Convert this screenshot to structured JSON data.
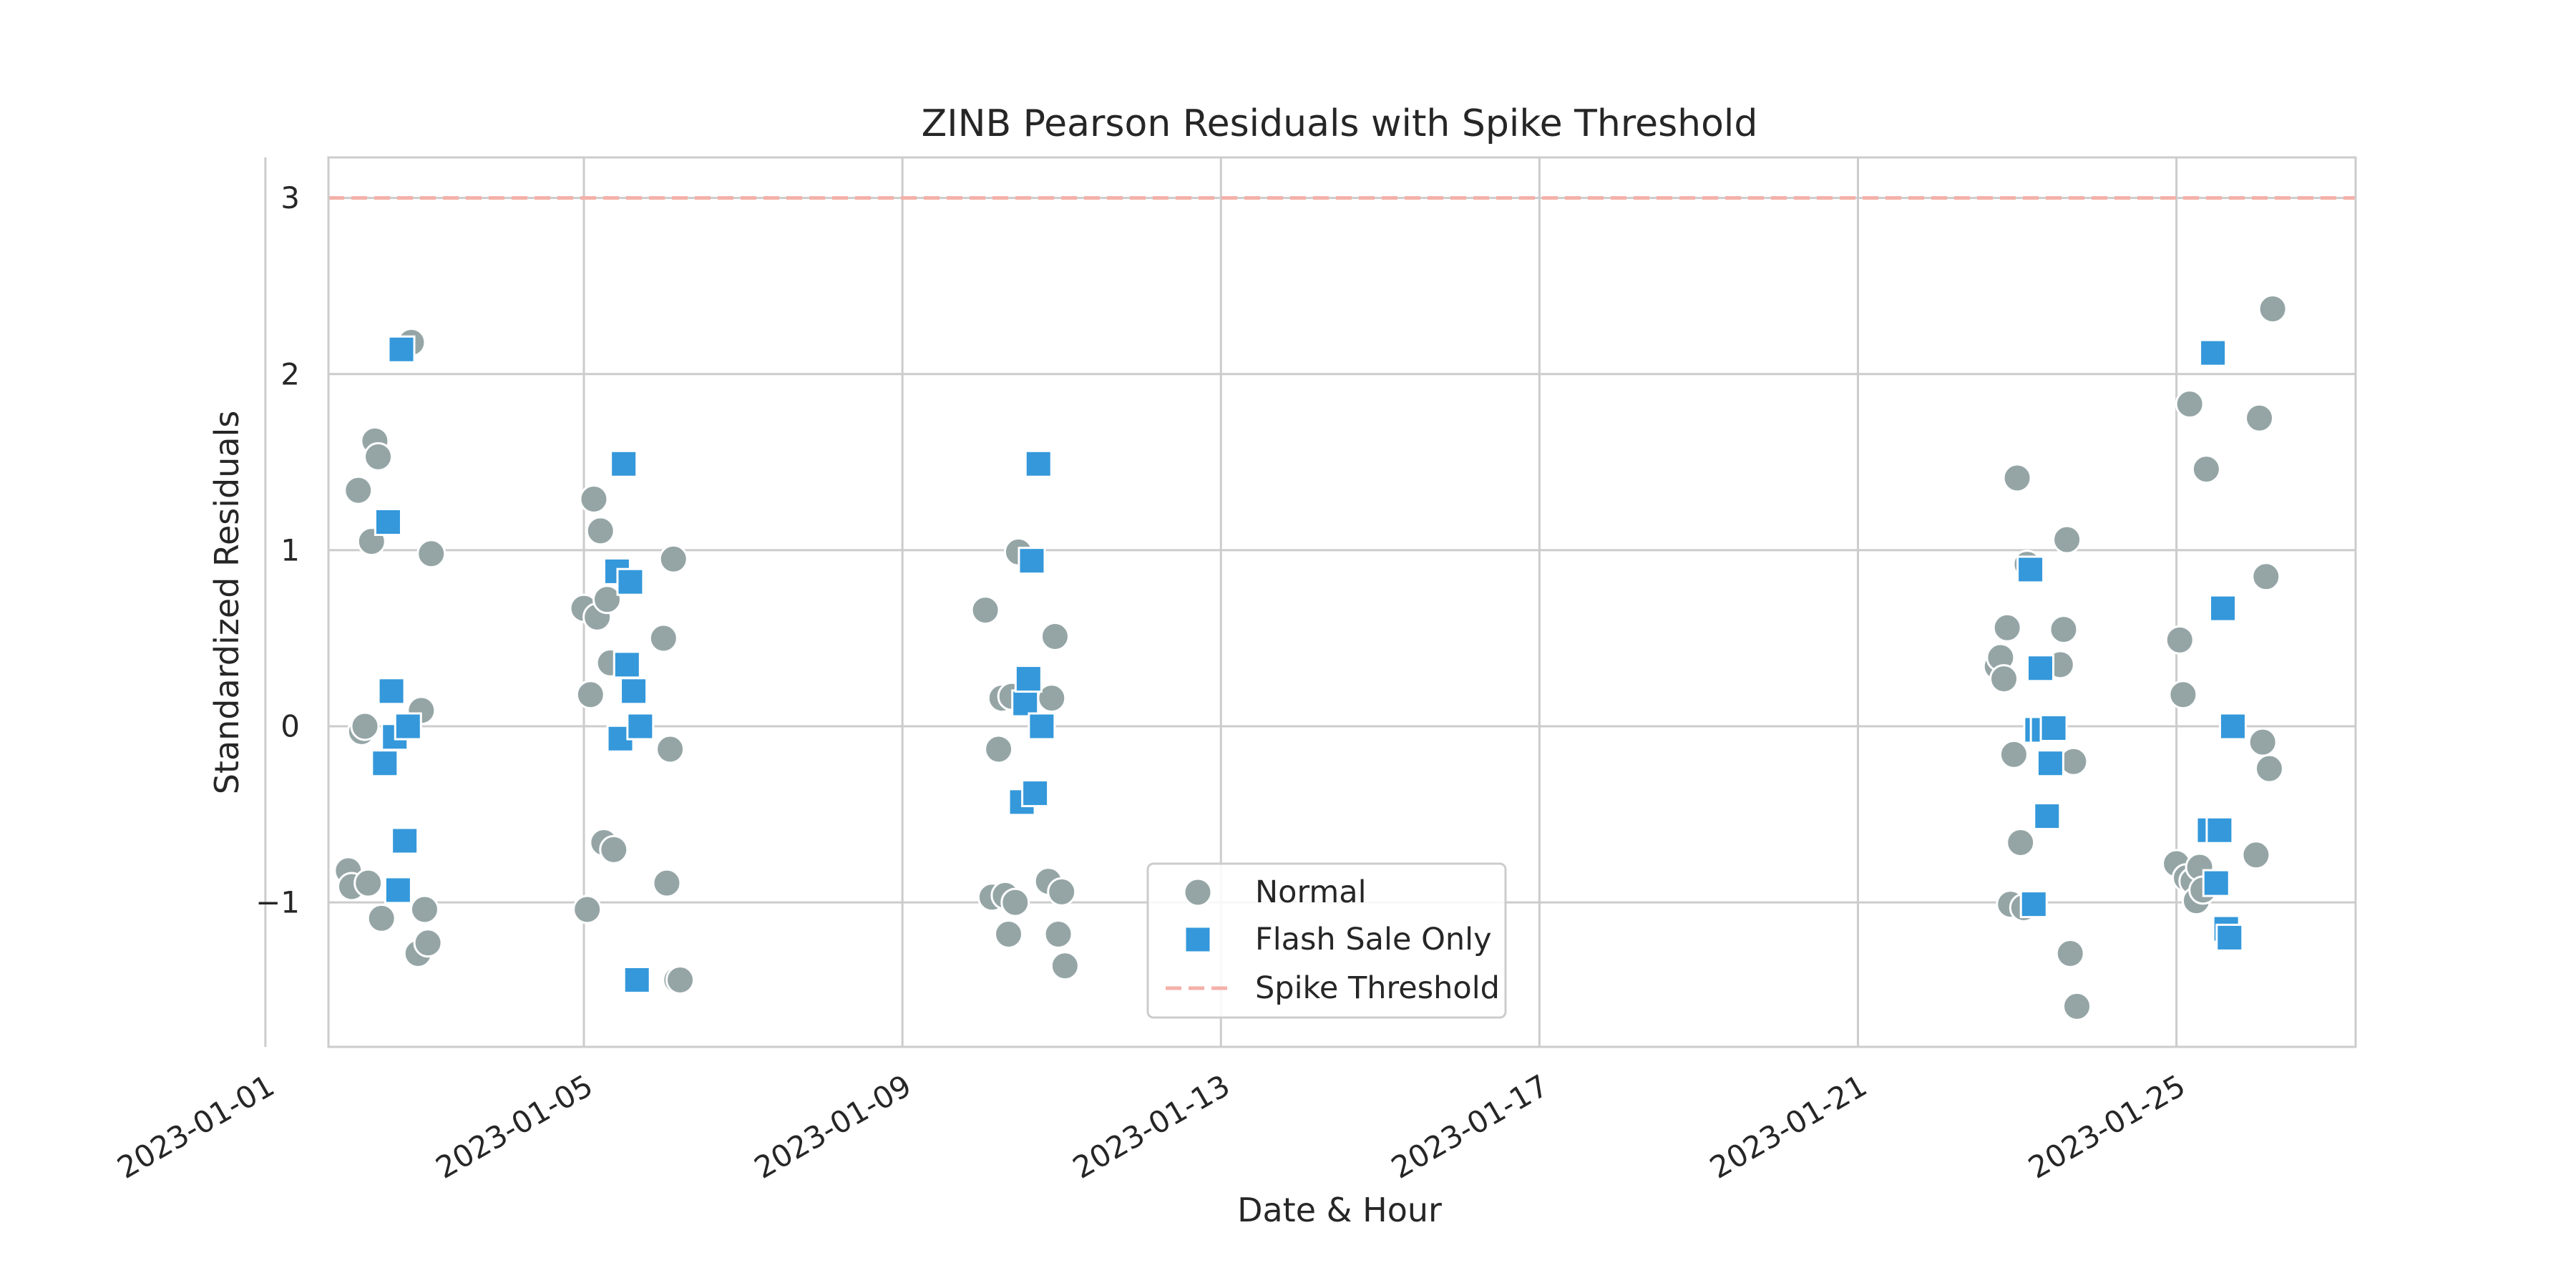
{
  "chart_data": {
    "type": "scatter",
    "title": "ZINB Pearson Residuals with Spike Threshold",
    "xlabel": "Date & Hour",
    "ylabel": "Standardized Residuals",
    "x_scale": "time",
    "xlim": [
      "2023-01-01T19:00",
      "2023-01-27T06:00"
    ],
    "ylim": [
      -1.82,
      3.23
    ],
    "x_ticks": [
      "2023-01-01",
      "2023-01-05",
      "2023-01-09",
      "2023-01-13",
      "2023-01-17",
      "2023-01-21",
      "2023-01-25"
    ],
    "y_ticks": [
      -1,
      0,
      1,
      2,
      3
    ],
    "grid": true,
    "legend": {
      "placement": "lower center",
      "entries": [
        "Normal",
        "Flash Sale Only",
        "Spike Threshold"
      ]
    },
    "threshold": {
      "name": "Spike Threshold",
      "value": 3,
      "color": "#f4b0a8",
      "style": "dashed"
    },
    "series": [
      {
        "name": "Normal",
        "marker": "circle",
        "color": "#95a5a6",
        "points": [
          [
            "2023-01-02T01:00",
            -0.82
          ],
          [
            "2023-01-02T02:00",
            -0.91
          ],
          [
            "2023-01-02T04:00",
            1.34
          ],
          [
            "2023-01-02T05:00",
            -0.03
          ],
          [
            "2023-01-02T06:00",
            0.0
          ],
          [
            "2023-01-02T07:00",
            -0.89
          ],
          [
            "2023-01-02T08:00",
            1.05
          ],
          [
            "2023-01-02T09:00",
            1.62
          ],
          [
            "2023-01-02T10:00",
            1.53
          ],
          [
            "2023-01-02T11:00",
            -1.09
          ],
          [
            "2023-01-02T20:00",
            2.18
          ],
          [
            "2023-01-02T22:00",
            -1.29
          ],
          [
            "2023-01-02T23:00",
            0.09
          ],
          [
            "2023-01-03T00:00",
            -1.04
          ],
          [
            "2023-01-03T01:00",
            -1.23
          ],
          [
            "2023-01-03T02:00",
            0.98
          ],
          [
            "2023-01-05T00:00",
            0.67
          ],
          [
            "2023-01-05T01:00",
            -1.04
          ],
          [
            "2023-01-05T02:00",
            0.18
          ],
          [
            "2023-01-05T03:00",
            1.29
          ],
          [
            "2023-01-05T04:00",
            0.62
          ],
          [
            "2023-01-05T05:00",
            1.11
          ],
          [
            "2023-01-05T06:00",
            -0.66
          ],
          [
            "2023-01-05T07:00",
            0.72
          ],
          [
            "2023-01-05T08:00",
            0.36
          ],
          [
            "2023-01-05T09:00",
            -0.7
          ],
          [
            "2023-01-06T00:00",
            0.5
          ],
          [
            "2023-01-06T01:00",
            -0.89
          ],
          [
            "2023-01-06T02:00",
            -0.13
          ],
          [
            "2023-01-06T03:00",
            0.95
          ],
          [
            "2023-01-06T04:00",
            -1.44
          ],
          [
            "2023-01-06T05:00",
            -1.44
          ],
          [
            "2023-01-10T01:00",
            0.66
          ],
          [
            "2023-01-10T03:00",
            -0.97
          ],
          [
            "2023-01-10T05:00",
            -0.13
          ],
          [
            "2023-01-10T06:00",
            0.16
          ],
          [
            "2023-01-10T07:00",
            -0.96
          ],
          [
            "2023-01-10T08:00",
            -1.18
          ],
          [
            "2023-01-10T09:00",
            0.17
          ],
          [
            "2023-01-10T10:00",
            -1.0
          ],
          [
            "2023-01-10T11:00",
            0.99
          ],
          [
            "2023-01-10T20:00",
            -0.88
          ],
          [
            "2023-01-10T21:00",
            0.16
          ],
          [
            "2023-01-10T22:00",
            0.51
          ],
          [
            "2023-01-10T23:00",
            -1.18
          ],
          [
            "2023-01-11T00:00",
            -0.94
          ],
          [
            "2023-01-11T01:00",
            -1.36
          ],
          [
            "2023-01-22T18:00",
            0.34
          ],
          [
            "2023-01-22T19:00",
            0.39
          ],
          [
            "2023-01-22T20:00",
            0.27
          ],
          [
            "2023-01-22T21:00",
            0.56
          ],
          [
            "2023-01-22T22:00",
            -1.01
          ],
          [
            "2023-01-22T23:00",
            -0.16
          ],
          [
            "2023-01-23T00:00",
            1.41
          ],
          [
            "2023-01-23T01:00",
            -0.66
          ],
          [
            "2023-01-23T02:00",
            -1.03
          ],
          [
            "2023-01-23T03:00",
            0.92
          ],
          [
            "2023-01-23T13:00",
            0.35
          ],
          [
            "2023-01-23T14:00",
            0.55
          ],
          [
            "2023-01-23T15:00",
            1.06
          ],
          [
            "2023-01-23T16:00",
            -1.29
          ],
          [
            "2023-01-23T17:00",
            -0.2
          ],
          [
            "2023-01-23T18:00",
            -1.59
          ],
          [
            "2023-01-25T00:00",
            -0.78
          ],
          [
            "2023-01-25T01:00",
            0.49
          ],
          [
            "2023-01-25T02:00",
            0.18
          ],
          [
            "2023-01-25T03:00",
            -0.86
          ],
          [
            "2023-01-25T04:00",
            1.83
          ],
          [
            "2023-01-25T05:00",
            -0.88
          ],
          [
            "2023-01-25T06:00",
            -0.99
          ],
          [
            "2023-01-25T07:00",
            -0.8
          ],
          [
            "2023-01-25T08:00",
            -0.93
          ],
          [
            "2023-01-25T09:00",
            1.46
          ],
          [
            "2023-01-26T00:00",
            -0.73
          ],
          [
            "2023-01-26T01:00",
            1.75
          ],
          [
            "2023-01-26T02:00",
            -0.09
          ],
          [
            "2023-01-26T03:00",
            0.85
          ],
          [
            "2023-01-26T04:00",
            -0.24
          ],
          [
            "2023-01-26T05:00",
            2.37
          ]
        ]
      },
      {
        "name": "Flash Sale Only",
        "marker": "square",
        "color": "#3498db",
        "points": [
          [
            "2023-01-02T12:00",
            -0.21
          ],
          [
            "2023-01-02T13:00",
            1.16
          ],
          [
            "2023-01-02T14:00",
            0.2
          ],
          [
            "2023-01-02T15:00",
            -0.06
          ],
          [
            "2023-01-02T16:00",
            -0.93
          ],
          [
            "2023-01-02T17:00",
            2.14
          ],
          [
            "2023-01-02T18:00",
            -0.65
          ],
          [
            "2023-01-02T19:00",
            0.0
          ],
          [
            "2023-01-05T10:00",
            0.88
          ],
          [
            "2023-01-05T11:00",
            -0.07
          ],
          [
            "2023-01-05T12:00",
            1.49
          ],
          [
            "2023-01-05T13:00",
            0.35
          ],
          [
            "2023-01-05T14:00",
            0.82
          ],
          [
            "2023-01-05T15:00",
            0.2
          ],
          [
            "2023-01-05T16:00",
            -1.44
          ],
          [
            "2023-01-05T17:00",
            0.0
          ],
          [
            "2023-01-10T12:00",
            -0.43
          ],
          [
            "2023-01-10T13:00",
            0.13
          ],
          [
            "2023-01-10T14:00",
            0.27
          ],
          [
            "2023-01-10T15:00",
            0.94
          ],
          [
            "2023-01-10T16:00",
            -0.38
          ],
          [
            "2023-01-10T17:00",
            1.49
          ],
          [
            "2023-01-10T18:00",
            0.0
          ],
          [
            "2023-01-23T04:00",
            0.89
          ],
          [
            "2023-01-23T05:00",
            -1.01
          ],
          [
            "2023-01-23T06:00",
            -0.02
          ],
          [
            "2023-01-23T07:00",
            0.33
          ],
          [
            "2023-01-23T08:00",
            -0.02
          ],
          [
            "2023-01-23T09:00",
            -0.51
          ],
          [
            "2023-01-23T10:00",
            -0.21
          ],
          [
            "2023-01-23T11:00",
            -0.01
          ],
          [
            "2023-01-25T10:00",
            -0.59
          ],
          [
            "2023-01-25T11:00",
            2.12
          ],
          [
            "2023-01-25T12:00",
            -0.89
          ],
          [
            "2023-01-25T13:00",
            -0.59
          ],
          [
            "2023-01-25T14:00",
            0.67
          ],
          [
            "2023-01-25T15:00",
            -1.15
          ],
          [
            "2023-01-25T16:00",
            -1.2
          ],
          [
            "2023-01-25T17:00",
            0.0
          ]
        ]
      }
    ]
  }
}
